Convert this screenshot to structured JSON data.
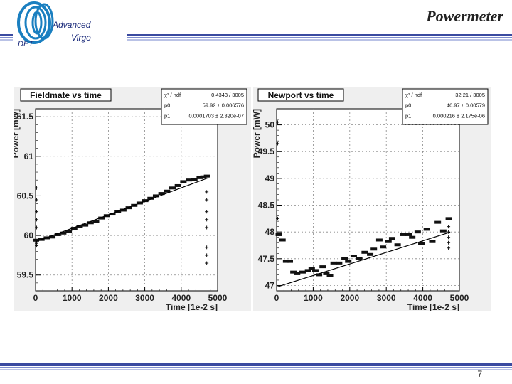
{
  "slide": {
    "title": "Powermeter",
    "page_number": "7"
  },
  "logo": {
    "advanced": "Advanced",
    "virgo": "Virgo",
    "det": "DET"
  },
  "colors": {
    "band_dark": "#3a4aa0",
    "band_mid": "#7f8ecf",
    "band_light": "#b9c2e6",
    "panel_bg": "#efefef",
    "logo_blue": "#1a7fc0"
  },
  "chart_data": [
    {
      "type": "scatter",
      "title": "Fieldmate vs time",
      "xlabel": "Time [1e-2 s]",
      "ylabel": "Power [mW]",
      "xlim": [
        0,
        5000
      ],
      "ylim": [
        59.3,
        61.6
      ],
      "xticks": [
        0,
        1000,
        2000,
        3000,
        4000,
        5000
      ],
      "xtick_labels": [
        "0",
        "1000",
        "2000",
        "3000",
        "4000",
        "5000"
      ],
      "yticks": [
        59.5,
        60,
        60.5,
        61,
        61.5
      ],
      "ytick_labels": [
        "59.5",
        "60",
        "60.5",
        "61",
        "61.5"
      ],
      "stats": [
        {
          "name": "χ² / ndf",
          "value": "0.4343 / 3005"
        },
        {
          "name": "p0",
          "value": "59.92 ± 0.006576"
        },
        {
          "name": "p1",
          "value": "0.0001703 ± 2.320e-07"
        }
      ],
      "fit": {
        "p0": 59.92,
        "p1": 0.0001703,
        "x": [
          0,
          4750
        ]
      },
      "series": [
        {
          "name": "trend",
          "x": [
            0,
            150,
            300,
            450,
            600,
            750,
            900,
            1050,
            1200,
            1350,
            1500,
            1650,
            1800,
            1950,
            2100,
            2250,
            2400,
            2550,
            2700,
            2850,
            3000,
            3150,
            3300,
            3450,
            3600,
            3750,
            3900,
            4050,
            4200,
            4350,
            4500,
            4600,
            4700
          ],
          "y": [
            59.94,
            59.95,
            59.97,
            59.98,
            60.01,
            60.03,
            60.05,
            60.09,
            60.11,
            60.13,
            60.16,
            60.18,
            60.22,
            60.25,
            60.27,
            60.3,
            60.32,
            60.35,
            60.38,
            60.41,
            60.44,
            60.47,
            60.5,
            60.53,
            60.56,
            60.6,
            60.63,
            60.68,
            60.7,
            60.71,
            60.73,
            60.74,
            60.75
          ]
        },
        {
          "name": "outliers",
          "x": [
            30,
            30,
            30,
            30,
            30,
            30,
            30,
            30,
            4700,
            4700,
            4700,
            4700,
            4700,
            4700,
            4700,
            4700
          ],
          "y": [
            59.87,
            59.9,
            59.93,
            60.1,
            60.2,
            60.3,
            60.45,
            60.6,
            60.55,
            60.45,
            60.3,
            60.2,
            60.1,
            59.85,
            59.75,
            59.65
          ]
        }
      ]
    },
    {
      "type": "scatter",
      "title": "Newport vs time",
      "xlabel": "Time [1e-2 s]",
      "ylabel": "Power [mW]",
      "xlim": [
        0,
        5000
      ],
      "ylim": [
        46.9,
        50.3
      ],
      "xticks": [
        0,
        1000,
        2000,
        3000,
        4000,
        5000
      ],
      "xtick_labels": [
        "0",
        "1000",
        "2000",
        "3000",
        "4000",
        "5000"
      ],
      "yticks": [
        47,
        47.5,
        48,
        48.5,
        49,
        49.5,
        50
      ],
      "ytick_labels": [
        "47",
        "47.5",
        "48",
        "48.5",
        "49",
        "49.5",
        "50"
      ],
      "stats": [
        {
          "name": "χ² / ndf",
          "value": "32.21 / 3005"
        },
        {
          "name": "p0",
          "value": "46.97 ± 0.00579"
        },
        {
          "name": "p1",
          "value": "0.000216 ± 2.175e-06"
        }
      ],
      "fit": {
        "p0": 46.97,
        "p1": 0.000216,
        "x": [
          0,
          4750
        ]
      },
      "series": [
        {
          "name": "trend",
          "x": [
            50,
            150,
            250,
            350,
            450,
            550,
            700,
            850,
            950,
            1050,
            1150,
            1250,
            1350,
            1450,
            1550,
            1700,
            1850,
            1950,
            2100,
            2250,
            2400,
            2550,
            2650,
            2800,
            2900,
            3050,
            3150,
            3300,
            3450,
            3600,
            3700,
            3850,
            3950,
            4100,
            4250,
            4400,
            4550,
            4700
          ],
          "y": [
            47.95,
            47.85,
            47.45,
            47.45,
            47.25,
            47.22,
            47.25,
            47.28,
            47.32,
            47.28,
            47.2,
            47.35,
            47.22,
            47.18,
            47.42,
            47.42,
            47.5,
            47.45,
            47.55,
            47.5,
            47.62,
            47.58,
            47.68,
            47.85,
            47.72,
            47.82,
            47.88,
            47.76,
            47.95,
            47.95,
            47.9,
            48,
            47.78,
            48.05,
            47.82,
            48.18,
            48.02,
            48.25
          ]
        },
        {
          "name": "outliers",
          "x": [
            30,
            30,
            30,
            4700,
            4700,
            4700,
            4700,
            4700
          ],
          "y": [
            50.05,
            49.65,
            48.25,
            48.1,
            48.0,
            47.9,
            47.8,
            47.7
          ]
        }
      ]
    }
  ]
}
